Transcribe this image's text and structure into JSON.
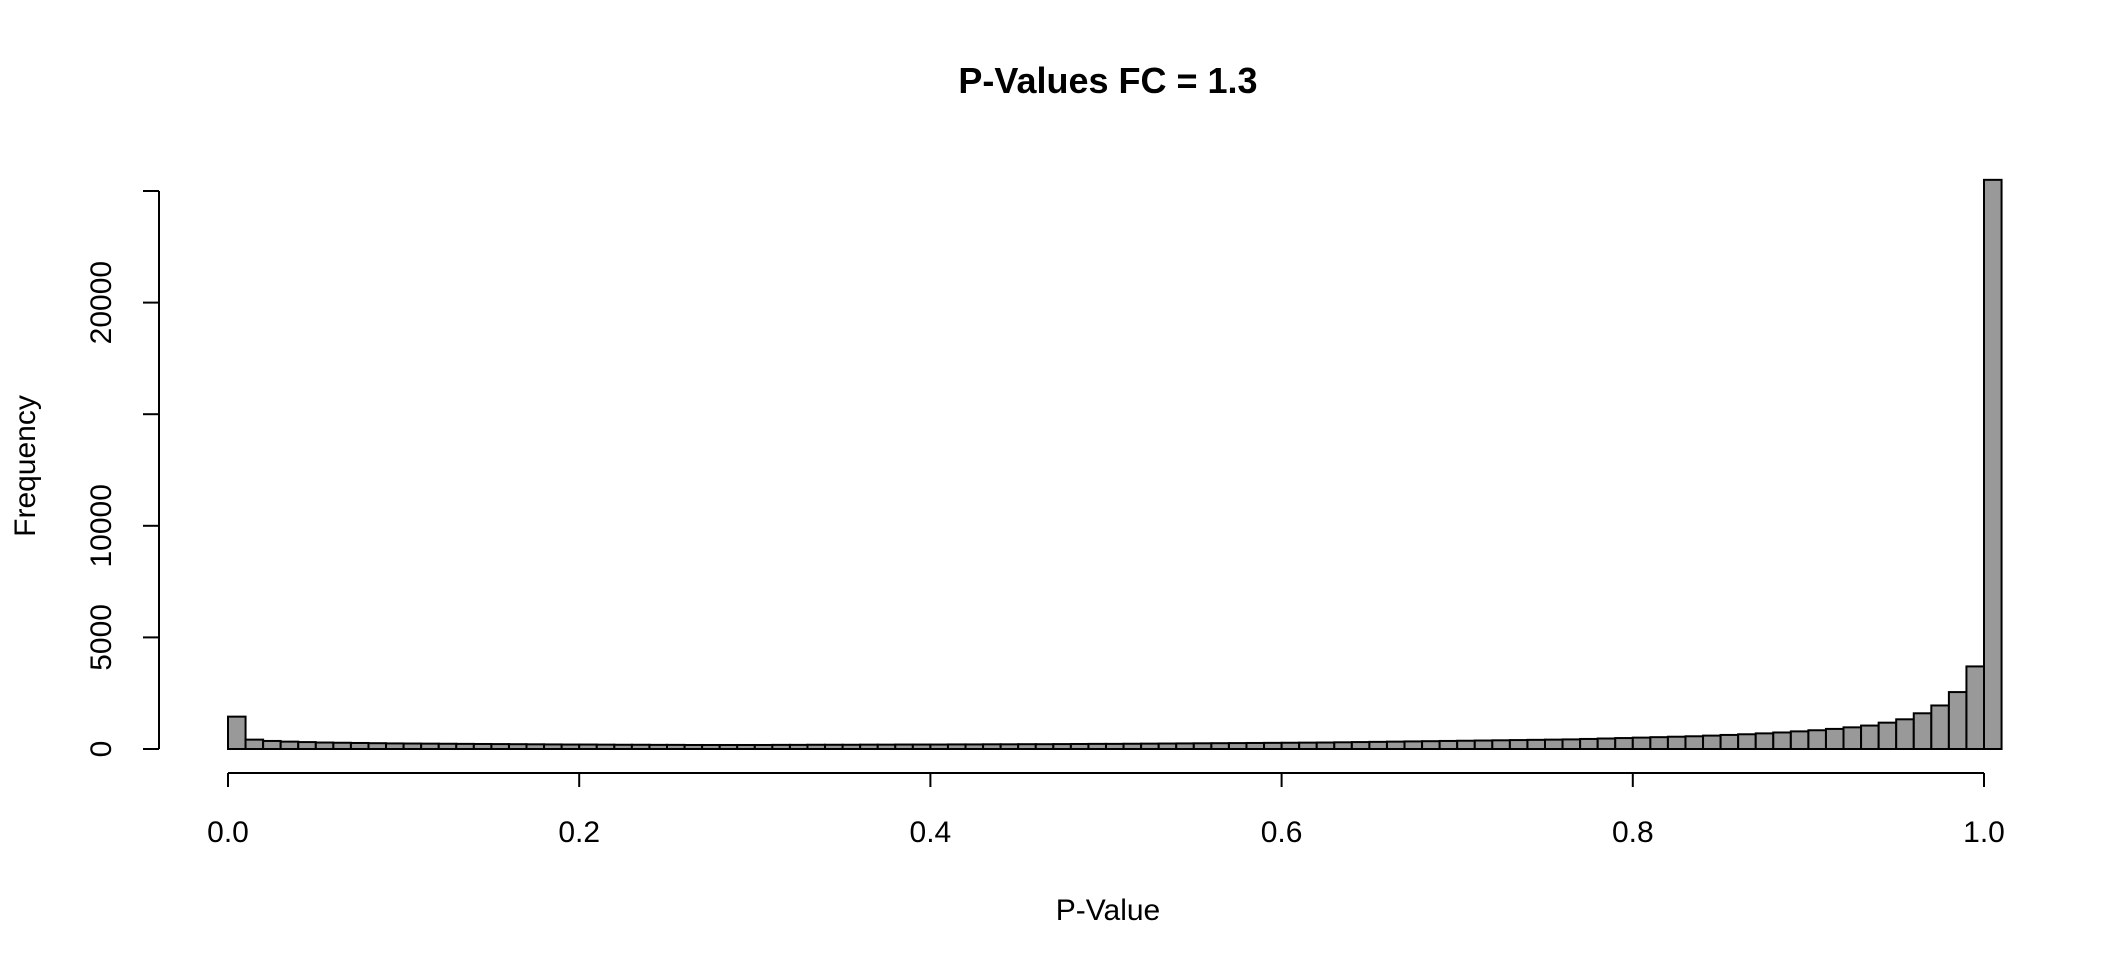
{
  "chart_data": {
    "type": "bar",
    "title": "P-Values FC = 1.3",
    "xlabel": "P-Value",
    "ylabel": "Frequency",
    "xlim": [
      0,
      1
    ],
    "ylim": [
      0,
      25000
    ],
    "x_ticks": [
      0.0,
      0.2,
      0.4,
      0.6,
      0.8,
      1.0
    ],
    "x_tick_labels": [
      "0.0",
      "0.2",
      "0.4",
      "0.6",
      "0.8",
      "1.0"
    ],
    "y_ticks": [
      0,
      5000,
      10000,
      15000,
      20000,
      25000
    ],
    "y_tick_labels": [
      "0",
      "5000",
      "10000",
      "",
      "20000",
      ""
    ],
    "bin_width": 0.01,
    "bin_start": 0,
    "bar_color": "#999999",
    "edge_color": "#000000",
    "grid": false,
    "legend": "none",
    "values": [
      1450,
      420,
      360,
      330,
      310,
      290,
      280,
      270,
      260,
      250,
      245,
      240,
      235,
      230,
      225,
      220,
      215,
      210,
      205,
      200,
      200,
      195,
      190,
      190,
      185,
      185,
      180,
      180,
      180,
      180,
      180,
      185,
      185,
      190,
      190,
      190,
      195,
      195,
      200,
      200,
      200,
      205,
      205,
      210,
      210,
      215,
      215,
      220,
      225,
      230,
      230,
      235,
      240,
      245,
      250,
      255,
      260,
      265,
      270,
      275,
      280,
      285,
      290,
      300,
      310,
      320,
      330,
      340,
      350,
      360,
      370,
      380,
      390,
      400,
      410,
      420,
      430,
      450,
      470,
      490,
      510,
      530,
      550,
      570,
      600,
      630,
      660,
      700,
      740,
      790,
      840,
      900,
      970,
      1050,
      1180,
      1330,
      1600,
      1950,
      2550,
      3700,
      25500
    ]
  }
}
